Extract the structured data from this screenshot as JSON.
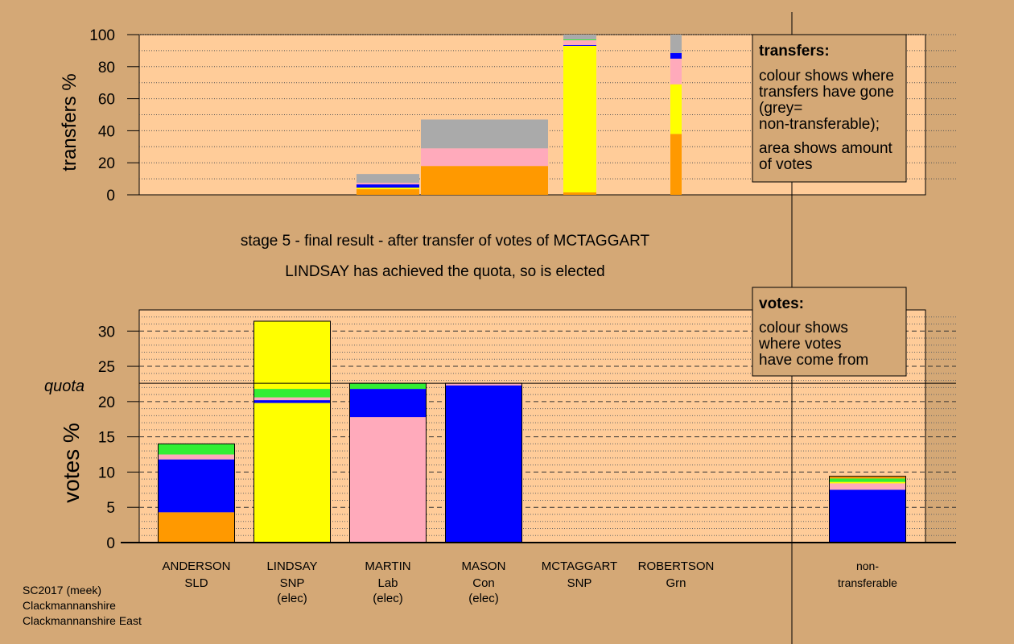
{
  "colors": {
    "page_bg": "#d4a876",
    "plot_bg": "#ffcc99",
    "SLD": "#ff9900",
    "SNP": "#ffff00",
    "Lab": "#ffaabb",
    "Con": "#0000ff",
    "Grn": "#33ee33",
    "nontransferable": "#aaaaaa"
  },
  "header": {
    "stage_text": "stage 5 - final result - after transfer of votes of MCTAGGART",
    "elected_text": "LINDSAY has achieved the quota, so is elected"
  },
  "footer": {
    "line1": "SC2017 (meek)",
    "line2": "Clackmannanshire",
    "line3": "Clackmannanshire East"
  },
  "chart_data": [
    {
      "type": "bar",
      "title": "transfers",
      "ylabel": "transfers %",
      "ylim": [
        0,
        100
      ],
      "yticks": [
        0,
        20,
        40,
        60,
        80,
        100
      ],
      "legend": {
        "title": "transfers:",
        "line1": "colour shows where transfers have gone (grey= non-transferable);",
        "line2": "area shows amount of votes"
      },
      "bars": [
        {
          "candidate": "MARTIN",
          "segments": [
            {
              "party": "SLD",
              "value": 3.5
            },
            {
              "party": "SNP",
              "value": 1.0
            },
            {
              "party": "Con",
              "value": 2.0
            },
            {
              "party": "Lab",
              "value": 1.0
            },
            {
              "party": "nontransferable",
              "value": 5.5
            }
          ]
        },
        {
          "candidate": "MASON",
          "segments": [
            {
              "party": "SLD",
              "value": 18
            },
            {
              "party": "Lab",
              "value": 11
            },
            {
              "party": "nontransferable",
              "value": 18
            }
          ]
        },
        {
          "candidate": "MCTAGGART",
          "segments": [
            {
              "party": "SLD",
              "value": 1.5
            },
            {
              "party": "SNP",
              "value": 91.5
            },
            {
              "party": "Con",
              "value": 0.5
            },
            {
              "party": "Lab",
              "value": 3.0
            },
            {
              "party": "Grn",
              "value": 0.5
            },
            {
              "party": "nontransferable",
              "value": 3.0
            }
          ]
        },
        {
          "candidate": "ROBERTSON",
          "segments": [
            {
              "party": "SLD",
              "value": 38
            },
            {
              "party": "SNP",
              "value": 31
            },
            {
              "party": "Lab",
              "value": 16
            },
            {
              "party": "Con",
              "value": 3.5
            },
            {
              "party": "nontransferable",
              "value": 11.5
            }
          ]
        }
      ]
    },
    {
      "type": "bar",
      "title": "votes",
      "ylabel": "votes %",
      "ylim": [
        0,
        33
      ],
      "yticks": [
        0,
        5,
        10,
        15,
        20,
        25,
        30
      ],
      "quota": 22.6,
      "quota_label": "quota",
      "legend": {
        "title": "votes:",
        "line1": "colour shows where votes have come from"
      },
      "categories": [
        {
          "name": "ANDERSON",
          "party": "SLD",
          "status": ""
        },
        {
          "name": "LINDSAY",
          "party": "SNP",
          "status": "(elec)"
        },
        {
          "name": "MARTIN",
          "party": "Lab",
          "status": "(elec)"
        },
        {
          "name": "MASON",
          "party": "Con",
          "status": "(elec)"
        },
        {
          "name": "MCTAGGART",
          "party": "SNP",
          "status": ""
        },
        {
          "name": "ROBERTSON",
          "party": "Grn",
          "status": ""
        },
        {
          "name": "non-",
          "party": "transferable",
          "status": ""
        }
      ],
      "bars": [
        {
          "candidate": "ANDERSON",
          "segments": [
            {
              "party": "SLD",
              "value": 4.3
            },
            {
              "party": "Con",
              "value": 7.5
            },
            {
              "party": "Lab",
              "value": 0.7
            },
            {
              "party": "Grn",
              "value": 1.5
            }
          ]
        },
        {
          "candidate": "LINDSAY",
          "segments": [
            {
              "party": "SNP",
              "value": 19.8
            },
            {
              "party": "Con",
              "value": 0.4
            },
            {
              "party": "Lab",
              "value": 0.4
            },
            {
              "party": "Grn",
              "value": 1.2
            },
            {
              "party": "SNP",
              "value": 9.6
            }
          ]
        },
        {
          "candidate": "MARTIN",
          "segments": [
            {
              "party": "Lab",
              "value": 17.8
            },
            {
              "party": "Con",
              "value": 4.0
            },
            {
              "party": "Grn",
              "value": 0.8
            }
          ]
        },
        {
          "candidate": "MASON",
          "segments": [
            {
              "party": "Con",
              "value": 22.3
            },
            {
              "party": "Lab",
              "value": 0.3
            }
          ]
        },
        {
          "candidate": "MCTAGGART",
          "segments": []
        },
        {
          "candidate": "ROBERTSON",
          "segments": []
        },
        {
          "candidate": "non-transferable",
          "segments": [
            {
              "party": "Con",
              "value": 7.5
            },
            {
              "party": "Lab",
              "value": 0.9
            },
            {
              "party": "SNP",
              "value": 0.2
            },
            {
              "party": "Grn",
              "value": 0.5
            },
            {
              "party": "SLD",
              "value": 0.3
            }
          ]
        }
      ]
    }
  ]
}
